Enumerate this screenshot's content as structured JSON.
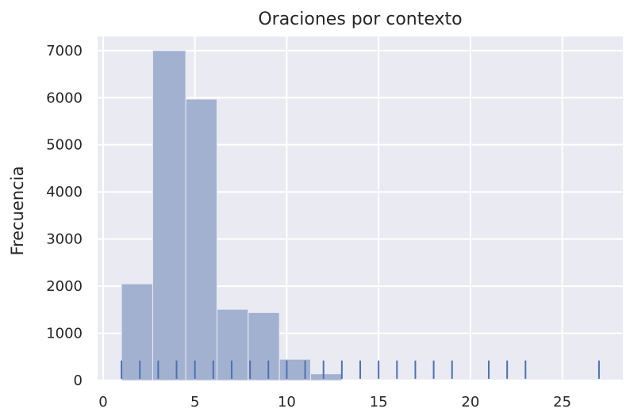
{
  "chart_data": {
    "type": "bar",
    "title": "Oraciones por contexto",
    "xlabel": "",
    "ylabel": "Frecuencia",
    "xlim": [
      -0.3,
      28.3
    ],
    "ylim": [
      0,
      7300
    ],
    "x_ticks": [
      0,
      5,
      10,
      15,
      20,
      25
    ],
    "y_ticks": [
      0,
      1000,
      2000,
      3000,
      4000,
      5000,
      6000,
      7000
    ],
    "grid": true,
    "bins": [
      {
        "x0": 1.0,
        "x1": 2.7,
        "value": 2050
      },
      {
        "x0": 2.7,
        "x1": 4.5,
        "value": 7000
      },
      {
        "x0": 4.5,
        "x1": 6.2,
        "value": 5970
      },
      {
        "x0": 6.2,
        "x1": 7.9,
        "value": 1510
      },
      {
        "x0": 7.9,
        "x1": 9.6,
        "value": 1440
      },
      {
        "x0": 9.6,
        "x1": 11.3,
        "value": 450
      },
      {
        "x0": 11.3,
        "x1": 13.0,
        "value": 140
      }
    ],
    "rug": [
      1,
      2,
      3,
      4,
      5,
      6,
      7,
      8,
      9,
      10,
      11,
      12,
      13,
      14,
      15,
      16,
      17,
      18,
      19,
      21,
      22,
      23,
      27
    ],
    "colors": {
      "bar": "#a3b1d0",
      "rug": "#4c72b0",
      "plot_bg": "#eaeaf2",
      "grid": "#ffffff"
    }
  }
}
